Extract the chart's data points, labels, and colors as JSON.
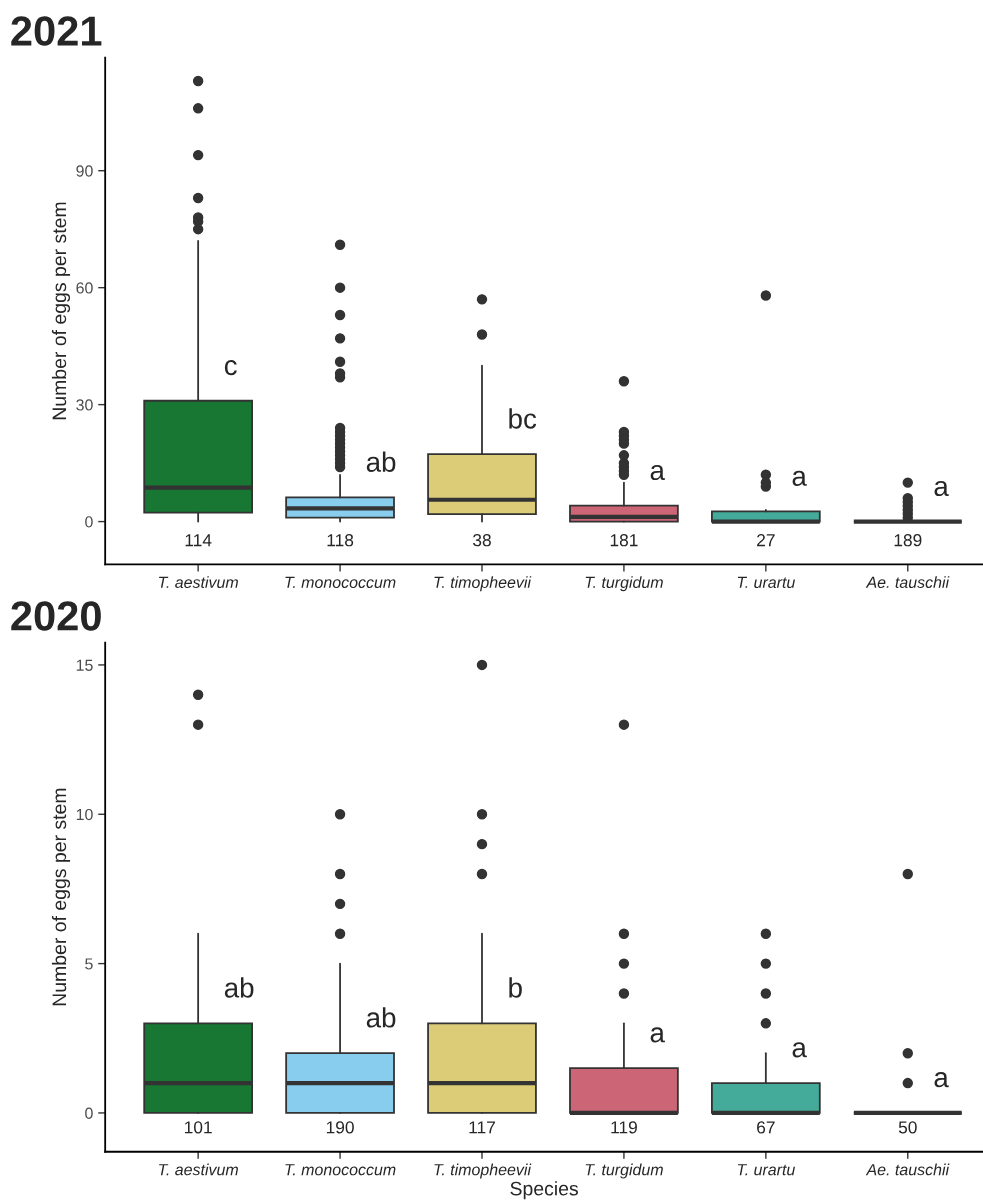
{
  "chart_data": [
    {
      "type": "box",
      "title": "2021",
      "ylabel": "Number of eggs per stem",
      "categories": [
        "T. aestivum",
        "T. monococcum",
        "T. timopheevii",
        "T. turgidum",
        "T. urartu",
        "Ae. tauschii"
      ],
      "colors": [
        "#177733",
        "#88ccee",
        "#ddcc77",
        "#cc6677",
        "#44aa99",
        "#333333"
      ],
      "boxes": [
        {
          "low": 0,
          "q1": 2.3,
          "median": 8.7,
          "q3": 31,
          "high": 72,
          "outliers": [
            75,
            77,
            78,
            83,
            94,
            106,
            113
          ]
        },
        {
          "low": 0,
          "q1": 1,
          "median": 3.4,
          "q3": 6.2,
          "high": 12,
          "outliers": [
            14,
            15,
            16,
            17,
            18,
            19,
            20,
            21,
            22,
            23,
            24,
            37,
            38,
            41,
            47,
            53,
            60,
            71
          ]
        },
        {
          "low": 0,
          "q1": 1.9,
          "median": 5.6,
          "q3": 17.3,
          "high": 40,
          "outliers": [
            48,
            57
          ]
        },
        {
          "low": 0,
          "q1": 0,
          "median": 1.2,
          "q3": 4.1,
          "high": 10,
          "outliers": [
            12,
            13,
            14,
            15,
            17,
            20,
            21,
            22,
            23,
            36
          ]
        },
        {
          "low": 0,
          "q1": 0,
          "median": 0,
          "q3": 2.6,
          "high": 3,
          "outliers": [
            9,
            10,
            12,
            58
          ]
        },
        {
          "low": 0,
          "q1": 0,
          "median": 0,
          "q3": 0,
          "high": 0,
          "outliers": [
            1,
            2,
            3,
            4,
            5,
            6,
            10
          ]
        }
      ],
      "ylim": [
        -11,
        119
      ],
      "yticks": [
        0,
        30,
        60,
        90
      ],
      "annotations": [
        "c",
        "ab",
        "bc",
        "a",
        "a",
        "a",
        "114",
        "118",
        "38",
        "181",
        "27",
        "189"
      ]
    },
    {
      "type": "box",
      "title": "2020",
      "ylabel": "Number of eggs per stem",
      "xlabel": "Species",
      "categories": [
        "T. aestivum",
        "T. monococcum",
        "T. timopheevii",
        "T. turgidum",
        "T. urartu",
        "Ae. tauschii"
      ],
      "colors": [
        "#177733",
        "#88ccee",
        "#ddcc77",
        "#cc6677",
        "#44aa99",
        "#333333"
      ],
      "boxes": [
        {
          "low": 0,
          "q1": 0,
          "median": 1,
          "q3": 3,
          "high": 6,
          "outliers": [
            13,
            14
          ]
        },
        {
          "low": 0,
          "q1": 0,
          "median": 1,
          "q3": 2,
          "high": 5,
          "outliers": [
            6,
            7,
            8,
            10
          ]
        },
        {
          "low": 0,
          "q1": 0,
          "median": 1,
          "q3": 3,
          "high": 6,
          "outliers": [
            8,
            9,
            10,
            15
          ]
        },
        {
          "low": 0,
          "q1": 0,
          "median": 0,
          "q3": 1.5,
          "high": 3,
          "outliers": [
            4,
            5,
            6,
            13
          ]
        },
        {
          "low": 0,
          "q1": 0,
          "median": 0,
          "q3": 1,
          "high": 2,
          "outliers": [
            3,
            4,
            5,
            6
          ]
        },
        {
          "low": 0,
          "q1": 0,
          "median": 0,
          "q3": 0,
          "high": 0,
          "outliers": [
            1,
            2,
            8
          ]
        }
      ],
      "ylim": [
        -1.3,
        15.75
      ],
      "yticks": [
        0,
        5,
        10,
        15
      ],
      "annotations": [
        "ab",
        "ab",
        "b",
        "a",
        "a",
        "a",
        "101",
        "190",
        "117",
        "119",
        "67",
        "50"
      ]
    }
  ]
}
